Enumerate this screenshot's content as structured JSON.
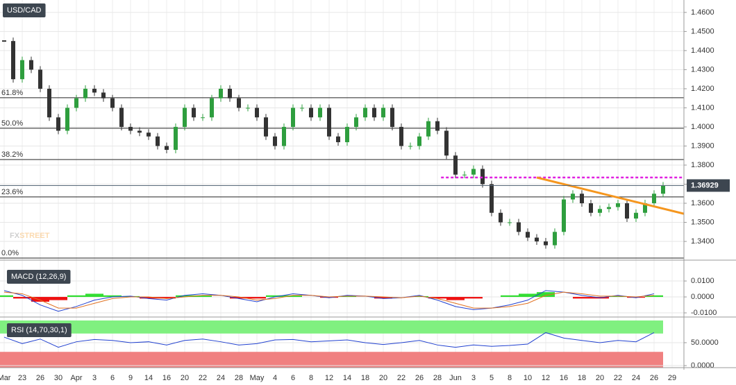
{
  "chart_data": [
    {
      "type": "candlestick",
      "title": "USD/CAD",
      "watermark": [
        "FX",
        "STREET"
      ],
      "categories": [
        "Mar",
        null,
        "23",
        null,
        "26",
        null,
        "30",
        null,
        "Apr",
        null,
        "3",
        null,
        "6",
        null,
        "9",
        null,
        "14",
        null,
        "16",
        null,
        "20",
        null,
        "22",
        null,
        "24",
        null,
        "28",
        null,
        "May",
        null,
        "4",
        null,
        "6",
        null,
        "8",
        null,
        "12",
        null,
        "14",
        null,
        "18",
        null,
        "20",
        null,
        "22",
        null,
        "26",
        null,
        "28",
        null,
        "Jun",
        null,
        "3",
        null,
        "5",
        null,
        "8",
        null,
        "10",
        null,
        "12",
        null,
        "16",
        null,
        "18",
        null,
        "20",
        null,
        "22",
        null,
        "24",
        null,
        "26",
        null,
        "29",
        null
      ],
      "values": [
        1.445,
        1.425,
        1.435,
        1.43,
        1.42,
        1.405,
        1.398,
        1.41,
        1.415,
        1.42,
        1.418,
        1.415,
        1.41,
        1.4,
        1.398,
        1.397,
        1.395,
        1.39,
        1.388,
        1.4,
        1.41,
        1.405,
        1.405,
        1.415,
        1.42,
        1.415,
        1.41,
        1.41,
        1.405,
        1.395,
        1.39,
        1.4,
        1.41,
        1.41,
        1.405,
        1.41,
        1.395,
        1.392,
        1.4,
        1.405,
        1.41,
        1.405,
        1.41,
        1.4,
        1.39,
        1.39,
        1.395,
        1.403,
        1.398,
        1.385,
        1.375,
        1.375,
        1.378,
        1.37,
        1.355,
        1.35,
        1.35,
        1.345,
        1.342,
        1.34,
        1.338,
        1.345,
        1.362,
        1.365,
        1.36,
        1.355,
        1.357,
        1.358,
        1.36,
        1.352,
        1.355,
        1.36,
        1.365,
        1.3693,
        null,
        null
      ],
      "up_color": "#2e9e3e",
      "down_color": "#333333",
      "ylim": [
        1.3302,
        1.4665
      ],
      "yticks": [
        {
          "value": 1.34,
          "label": "1.3400"
        },
        {
          "value": 1.35,
          "label": "1.3500"
        },
        {
          "value": 1.36,
          "label": "1.3600"
        },
        {
          "value": 1.37,
          "label": "1.3700"
        },
        {
          "value": 1.38,
          "label": "1.3800"
        },
        {
          "value": 1.39,
          "label": "1.3900"
        },
        {
          "value": 1.4,
          "label": "1.4000"
        },
        {
          "value": 1.41,
          "label": "1.4100"
        },
        {
          "value": 1.42,
          "label": "1.4200"
        },
        {
          "value": 1.43,
          "label": "1.4300"
        },
        {
          "value": 1.44,
          "label": "1.4400"
        },
        {
          "value": 1.45,
          "label": "1.4500"
        },
        {
          "value": 1.46,
          "label": "1.4600"
        }
      ],
      "levels": [
        {
          "label": "61.8%",
          "value": 1.4153
        },
        {
          "label": "50.0%",
          "value": 1.3993
        },
        {
          "label": "38.2%",
          "value": 1.3829
        },
        {
          "label": "23.6%",
          "value": 1.3633
        },
        {
          "label": "0.0%",
          "value": 1.3313
        }
      ],
      "last_price": {
        "value": 1.36929,
        "label": "1.36929"
      },
      "resistance": {
        "value": 1.3735,
        "x": 48.4,
        "color": "#e020e0"
      },
      "trendline": {
        "x": [
          59,
          75.3
        ],
        "values": [
          1.3735,
          1.3545
        ],
        "color": "#f5961e"
      },
      "grid": true
    },
    {
      "type": "macd",
      "title": "MACD (12,26,9)",
      "ylim": [
        -0.0126,
        0.0196
      ],
      "yticks": [
        {
          "value": -0.01,
          "label": "-0.0100"
        },
        {
          "value": 0,
          "label": "0.0000"
        },
        {
          "value": 0.01,
          "label": "0.0100"
        }
      ],
      "series": [
        {
          "color": "#2040d0",
          "values": [
            0.004,
            0.001,
            -0.005,
            -0.009,
            -0.006,
            -0.002,
            0,
            0.0005,
            -0.001,
            -0.002,
            0.001,
            0.002,
            0.001,
            -0.001,
            -0.003,
            0,
            0.002,
            0.001,
            -0.0005,
            0.001,
            0.0005,
            -0.001,
            -0.0005,
            0.001,
            -0.002,
            -0.006,
            -0.008,
            -0.007,
            -0.005,
            -0.002,
            0.004,
            0.003,
            0.001,
            -0.0005,
            0.001,
            -0.0005,
            0.002,
            null
          ]
        },
        {
          "color": "#e07020",
          "values": [
            0.003,
            0.002,
            -0.002,
            -0.007,
            -0.007,
            -0.004,
            -0.001,
            0,
            0,
            -0.001,
            0,
            0.001,
            0.001,
            0,
            -0.002,
            -0.001,
            0.001,
            0.001,
            0,
            0.0005,
            0.0005,
            0,
            -0.0005,
            0.0005,
            -0.001,
            -0.004,
            -0.007,
            -0.007,
            -0.006,
            -0.004,
            0.001,
            0.003,
            0.002,
            0.0005,
            0.0005,
            0,
            0.001,
            null
          ]
        }
      ],
      "histogram": {
        "values": [
          0.001,
          -0.001,
          -0.003,
          -0.002,
          0.001,
          0.002,
          0.001,
          0.0005,
          -0.001,
          -0.001,
          0.001,
          0.001,
          0,
          -0.001,
          -0.001,
          0.001,
          0.001,
          0,
          -0.0005,
          0.0005,
          0,
          -0.001,
          0,
          0.0005,
          -0.001,
          -0.002,
          -0.001,
          0,
          0.001,
          0.002,
          0.003,
          0,
          -0.001,
          -0.001,
          0.0005,
          -0.0005,
          0.001,
          null
        ],
        "up_color": "#33dd33",
        "down_color": "#ee1111"
      }
    },
    {
      "type": "rsi",
      "title": "RSI (14,70,30,1)",
      "ylim": [
        -4.5,
        101.5
      ],
      "yticks": [
        {
          "value": 0,
          "label": "0.0000"
        },
        {
          "value": 50,
          "label": "50.0000"
        }
      ],
      "levels": [
        70,
        30
      ],
      "upper_color": "#80f080",
      "lower_color": "#f08080",
      "series": [
        {
          "color": "#2040d0",
          "values": [
            62,
            48,
            58,
            40,
            52,
            57,
            55,
            50,
            52,
            45,
            55,
            58,
            52,
            45,
            48,
            56,
            57,
            52,
            54,
            56,
            50,
            46,
            50,
            55,
            45,
            40,
            45,
            42,
            44,
            47,
            72,
            60,
            55,
            50,
            55,
            52,
            72,
            null
          ]
        }
      ]
    }
  ]
}
